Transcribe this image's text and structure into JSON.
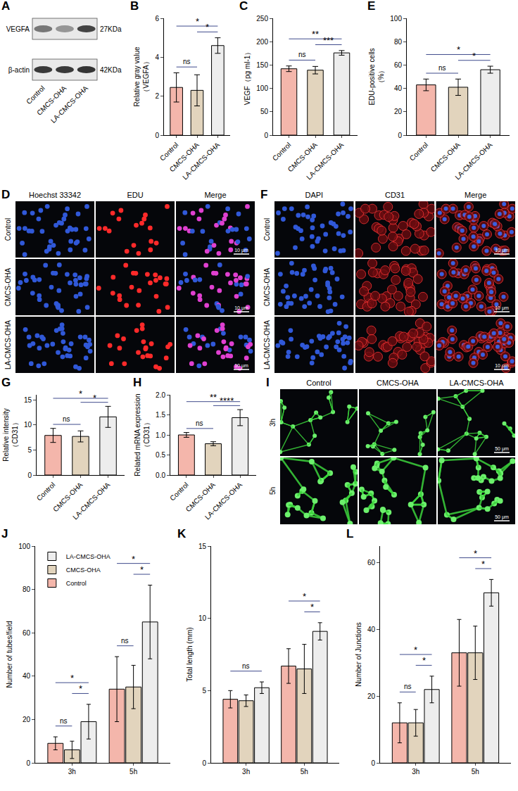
{
  "chart_data": [
    {
      "type": "bar",
      "panel": "B",
      "y_label": "Relative gray value（VEGFA）",
      "categories": [
        "Control",
        "CMCS-OHA",
        "LA-CMCS-OHA"
      ],
      "values": [
        2.45,
        2.3,
        4.6
      ],
      "errors": [
        0.75,
        0.8,
        0.4
      ],
      "colors": [
        "#f4b6ab",
        "#e2d4bd",
        "#ededed"
      ],
      "ylim": [
        0,
        6
      ],
      "yticks": [
        0,
        2,
        4,
        6
      ],
      "grid": false,
      "significance": [
        {
          "from": "Control",
          "to": "CMCS-OHA",
          "label": "ns"
        },
        {
          "from": "CMCS-OHA",
          "to": "LA-CMCS-OHA",
          "label": "*"
        },
        {
          "from": "Control",
          "to": "LA-CMCS-OHA",
          "label": "*"
        }
      ]
    },
    {
      "type": "bar",
      "panel": "C",
      "y_label": "VEGF（pg ml-1）",
      "categories": [
        "Control",
        "CMCS-OHA",
        "LA-CMCS-OHA"
      ],
      "values": [
        142,
        139,
        176
      ],
      "errors": [
        6,
        8,
        5
      ],
      "colors": [
        "#f4b6ab",
        "#e2d4bd",
        "#ededed"
      ],
      "ylim": [
        0,
        250
      ],
      "yticks": [
        0,
        50,
        100,
        150,
        200,
        250
      ],
      "grid": false,
      "significance": [
        {
          "from": "Control",
          "to": "CMCS-OHA",
          "label": "ns"
        },
        {
          "from": "CMCS-OHA",
          "to": "LA-CMCS-OHA",
          "label": "***"
        },
        {
          "from": "Control",
          "to": "LA-CMCS-OHA",
          "label": "**"
        }
      ]
    },
    {
      "type": "bar",
      "panel": "E",
      "y_label": "EDU-positive cells（%）",
      "categories": [
        "Control",
        "CMCS-OHA",
        "LA-CMCS-OHA"
      ],
      "values": [
        43,
        41,
        56
      ],
      "errors": [
        5,
        7,
        3
      ],
      "colors": [
        "#f4b6ab",
        "#e2d4bd",
        "#ededed"
      ],
      "ylim": [
        0,
        100
      ],
      "yticks": [
        0,
        20,
        40,
        60,
        80,
        100
      ],
      "grid": false,
      "significance": [
        {
          "from": "Control",
          "to": "CMCS-OHA",
          "label": "ns"
        },
        {
          "from": "CMCS-OHA",
          "to": "LA-CMCS-OHA",
          "label": "*"
        },
        {
          "from": "Control",
          "to": "LA-CMCS-OHA",
          "label": "*"
        }
      ]
    },
    {
      "type": "bar",
      "panel": "G",
      "y_label": "Relative intensity（CD31）",
      "categories": [
        "Control",
        "CMCS-OHA",
        "LA-CMCS-OHA"
      ],
      "values": [
        7.9,
        7.7,
        11.6
      ],
      "errors": [
        1.4,
        1.1,
        2.1
      ],
      "colors": [
        "#f4b6ab",
        "#e2d4bd",
        "#ededed"
      ],
      "ylim": [
        0,
        16
      ],
      "yticks": [
        0,
        5,
        10,
        15
      ],
      "grid": false,
      "significance": [
        {
          "from": "Control",
          "to": "CMCS-OHA",
          "label": "ns"
        },
        {
          "from": "CMCS-OHA",
          "to": "LA-CMCS-OHA",
          "label": "*"
        },
        {
          "from": "Control",
          "to": "LA-CMCS-OHA",
          "label": "*"
        }
      ]
    },
    {
      "type": "bar",
      "panel": "H",
      "y_label": "Related mRNA expression（CD31）",
      "categories": [
        "Control",
        "CMCS-OHA",
        "LA-CMCS-OHA"
      ],
      "values": [
        1.0,
        0.78,
        1.43
      ],
      "errors": [
        0.06,
        0.05,
        0.2
      ],
      "colors": [
        "#f4b6ab",
        "#e2d4bd",
        "#ededed"
      ],
      "ylim": [
        0,
        2
      ],
      "yticks": [
        {
          "value": 0,
          "label": "0.0"
        },
        {
          "value": 0.5,
          "label": "0.5"
        },
        {
          "value": 1,
          "label": "1.0"
        },
        {
          "value": 1.5,
          "label": "1.5"
        },
        {
          "value": 2,
          "label": "2.0"
        }
      ],
      "grid": false,
      "significance": [
        {
          "from": "Control",
          "to": "CMCS-OHA",
          "label": "ns"
        },
        {
          "from": "CMCS-OHA",
          "to": "LA-CMCS-OHA",
          "label": "****"
        },
        {
          "from": "Control",
          "to": "LA-CMCS-OHA",
          "label": "**"
        }
      ]
    },
    {
      "type": "bar",
      "panel": "J",
      "y_label": "Number of tubes/field",
      "categories": [
        "3h",
        "5h"
      ],
      "series": [
        {
          "name": "Control",
          "color": "#f4b6ab",
          "values": [
            9,
            34
          ],
          "errors": [
            3,
            15
          ]
        },
        {
          "name": "CMCS-OHA",
          "color": "#e2d4bd",
          "values": [
            6,
            35
          ],
          "errors": [
            4,
            10
          ]
        },
        {
          "name": "LA-CMCS-OHA",
          "color": "#ededed",
          "values": [
            19,
            65
          ],
          "errors": [
            8,
            17
          ]
        }
      ],
      "ylim": [
        0,
        100
      ],
      "yticks": [
        0,
        20,
        40,
        60,
        80,
        100
      ],
      "grid": false,
      "legend": "top-left",
      "significance": [
        {
          "group": "3h",
          "from": "Control",
          "to": "CMCS-OHA",
          "label": "ns"
        },
        {
          "group": "3h",
          "from": "CMCS-OHA",
          "to": "LA-CMCS-OHA",
          "label": "*"
        },
        {
          "group": "3h",
          "from": "Control",
          "to": "LA-CMCS-OHA",
          "label": "*"
        },
        {
          "group": "5h",
          "from": "Control",
          "to": "CMCS-OHA",
          "label": "ns"
        },
        {
          "group": "5h",
          "from": "CMCS-OHA",
          "to": "LA-CMCS-OHA",
          "label": "*"
        },
        {
          "group": "5h",
          "from": "Control",
          "to": "LA-CMCS-OHA",
          "label": "*"
        }
      ]
    },
    {
      "type": "bar",
      "panel": "K",
      "y_label": "Total length (mm)",
      "categories": [
        "3h",
        "5h"
      ],
      "series": [
        {
          "name": "Control",
          "color": "#f4b6ab",
          "values": [
            4.4,
            6.7
          ],
          "errors": [
            0.6,
            1.2
          ]
        },
        {
          "name": "CMCS-OHA",
          "color": "#e2d4bd",
          "values": [
            4.3,
            6.5
          ],
          "errors": [
            0.4,
            1.7
          ]
        },
        {
          "name": "LA-CMCS-OHA",
          "color": "#ededed",
          "values": [
            5.2,
            9.1
          ],
          "errors": [
            0.4,
            0.6
          ]
        }
      ],
      "ylim": [
        0,
        15
      ],
      "yticks": [
        0,
        5,
        10,
        15
      ],
      "grid": false,
      "significance": [
        {
          "group": "3h",
          "from": "Control",
          "to": "LA-CMCS-OHA",
          "label": "ns"
        },
        {
          "group": "5h",
          "from": "CMCS-OHA",
          "to": "LA-CMCS-OHA",
          "label": "*"
        },
        {
          "group": "5h",
          "from": "Control",
          "to": "LA-CMCS-OHA",
          "label": "*"
        }
      ]
    },
    {
      "type": "bar",
      "panel": "L",
      "y_label": "Number of Junctions",
      "categories": [
        "3h",
        "5h"
      ],
      "series": [
        {
          "name": "Control",
          "color": "#f4b6ab",
          "values": [
            12,
            33
          ],
          "errors": [
            6,
            10
          ]
        },
        {
          "name": "CMCS-OHA",
          "color": "#e2d4bd",
          "values": [
            12,
            33
          ],
          "errors": [
            4,
            8
          ]
        },
        {
          "name": "LA-CMCS-OHA",
          "color": "#ededed",
          "values": [
            22,
            51
          ],
          "errors": [
            4,
            4
          ]
        }
      ],
      "ylim": [
        0,
        65
      ],
      "yticks": [
        0,
        20,
        40,
        60
      ],
      "grid": false,
      "significance": [
        {
          "group": "3h",
          "from": "Control",
          "to": "CMCS-OHA",
          "label": "ns"
        },
        {
          "group": "3h",
          "from": "CMCS-OHA",
          "to": "LA-CMCS-OHA",
          "label": "*"
        },
        {
          "group": "3h",
          "from": "Control",
          "to": "LA-CMCS-OHA",
          "label": "*"
        },
        {
          "group": "5h",
          "from": "CMCS-OHA",
          "to": "LA-CMCS-OHA",
          "label": "*"
        },
        {
          "group": "5h",
          "from": "Control",
          "to": "LA-CMCS-OHA",
          "label": "*"
        }
      ]
    }
  ],
  "blot": {
    "panel": "A",
    "rows": [
      {
        "label": "VEGFA",
        "size": "27KDa"
      },
      {
        "label": "β-actin",
        "size": "42KDa"
      }
    ],
    "lanes": [
      "Control",
      "CMCS-OHA",
      "LA-CMCS-OHA"
    ]
  },
  "images": [
    {
      "panel": "D",
      "columns": [
        "Hoechst 33342",
        "EDU",
        "Merge"
      ],
      "rows": [
        "Control",
        "CMCS-OHA",
        "LA-CMCS-OHA"
      ],
      "scale_bar": "10 μm"
    },
    {
      "panel": "F",
      "columns": [
        "DAPI",
        "CD31",
        "Merge"
      ],
      "rows": [
        "Control",
        "CMCS-OHA",
        "LA-CMCS-OHA"
      ],
      "scale_bar": "10 μm"
    },
    {
      "panel": "I",
      "columns": [
        "Control",
        "CMCS-OHA",
        "LA-CMCS-OHA"
      ],
      "rows": [
        "3h",
        "5h"
      ],
      "scale_bar": "50 μm"
    }
  ]
}
